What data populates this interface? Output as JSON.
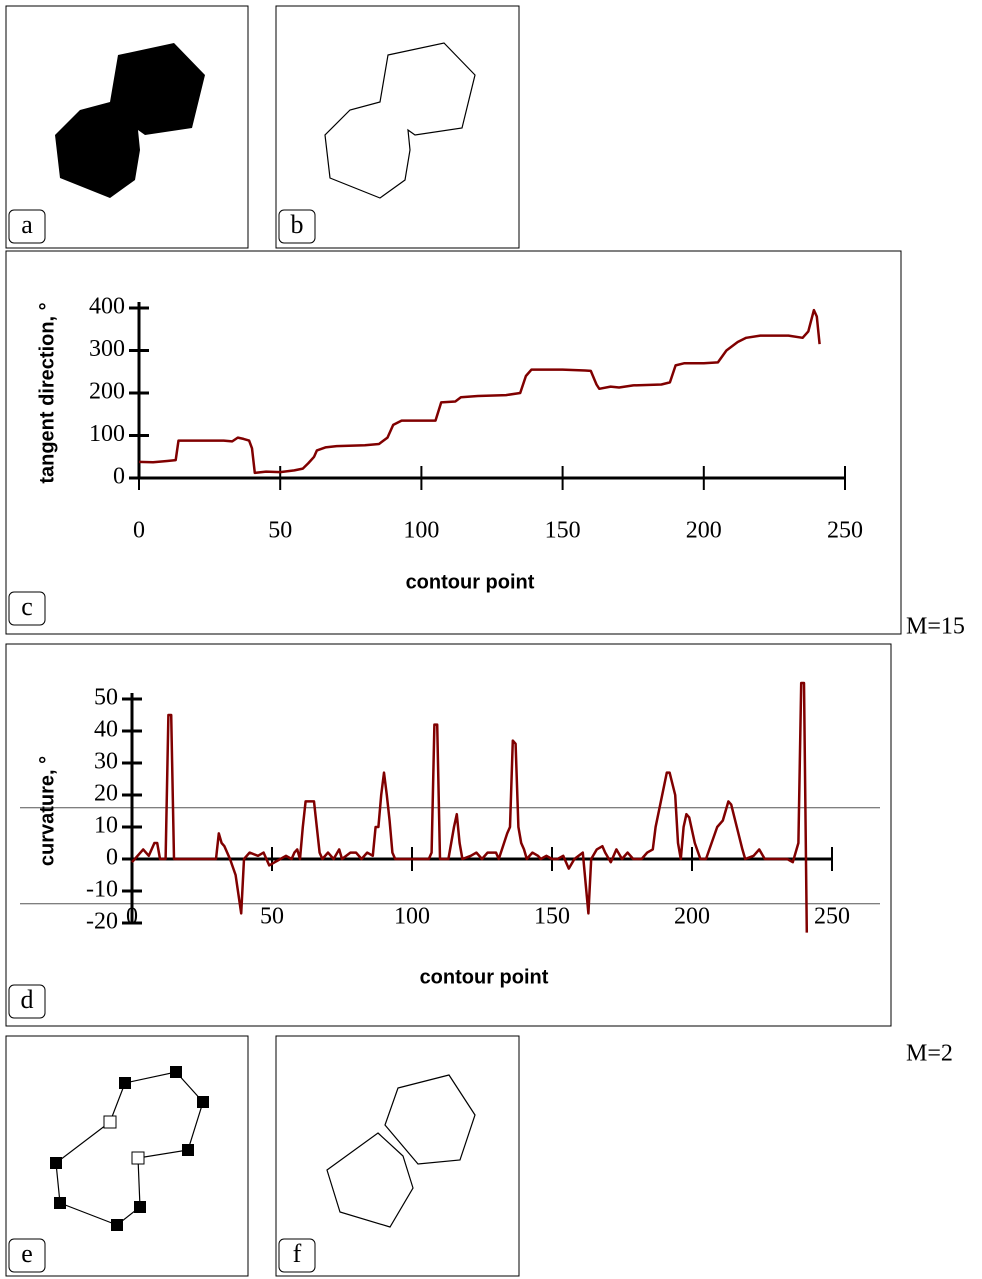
{
  "panel_labels": {
    "a": "a",
    "b": "b",
    "e": "e",
    "f": "f"
  },
  "chart_data": [
    {
      "type": "line",
      "panel_label": "c",
      "annotation": "M=15",
      "x_label": "contour point",
      "y_label": "tangent direction, °",
      "color": "#800000",
      "xlim": [
        0,
        250
      ],
      "xticks": [
        0,
        50,
        100,
        150,
        200,
        250
      ],
      "ylim": [
        0,
        400
      ],
      "yticks": [
        0,
        100,
        200,
        300,
        400
      ],
      "x": [
        0,
        5,
        10,
        13,
        14,
        20,
        30,
        33,
        35,
        37,
        39,
        40,
        41,
        45,
        50,
        55,
        58,
        60,
        62,
        63,
        66,
        70,
        80,
        85,
        88,
        90,
        93,
        105,
        107,
        112,
        114,
        120,
        130,
        135,
        137,
        139,
        150,
        158,
        160,
        162,
        163,
        167,
        170,
        175,
        185,
        188,
        190,
        193,
        200,
        205,
        208,
        212,
        215,
        220,
        230,
        235,
        237,
        239,
        240,
        241
      ],
      "values": [
        38,
        37,
        40,
        42,
        88,
        88,
        88,
        86,
        95,
        92,
        88,
        70,
        12,
        15,
        14,
        18,
        22,
        35,
        50,
        65,
        72,
        75,
        77,
        80,
        95,
        125,
        135,
        135,
        178,
        180,
        190,
        193,
        195,
        200,
        240,
        255,
        255,
        253,
        252,
        220,
        210,
        215,
        213,
        218,
        220,
        225,
        265,
        270,
        270,
        272,
        300,
        320,
        330,
        335,
        335,
        330,
        345,
        395,
        380,
        315
      ]
    },
    {
      "type": "line",
      "panel_label": "d",
      "annotation": "M=2",
      "x_label": "contour point",
      "y_label": "curvature, °",
      "color": "#800000",
      "xlim": [
        0,
        250
      ],
      "xticks": [
        0,
        50,
        100,
        150,
        200,
        250
      ],
      "ylim": [
        -20,
        50
      ],
      "yticks": [
        -20,
        -10,
        0,
        10,
        20,
        30,
        40,
        50
      ],
      "hlines": [
        16,
        -14
      ],
      "x": [
        0,
        2,
        4,
        6,
        8,
        9,
        10,
        12,
        13,
        14,
        15,
        30,
        31,
        32,
        33,
        35,
        37,
        39,
        40,
        42,
        45,
        47,
        49,
        51,
        53,
        55,
        57,
        58,
        59,
        60,
        61,
        62,
        65,
        66,
        67,
        68,
        70,
        72,
        74,
        75,
        78,
        80,
        82,
        84,
        86,
        87,
        88,
        89,
        90,
        91,
        92,
        93,
        94,
        106,
        107,
        108,
        109,
        110,
        113,
        115,
        116,
        117,
        118,
        121,
        123,
        125,
        127,
        130,
        131,
        134,
        135,
        136,
        137,
        138,
        139,
        140,
        141,
        143,
        145,
        146,
        148,
        150,
        152,
        154,
        156,
        158,
        161,
        163,
        164,
        166,
        168,
        169,
        171,
        173,
        175,
        177,
        179,
        182,
        184,
        186,
        187,
        191,
        192,
        194,
        195,
        196,
        197,
        198,
        199,
        201,
        203,
        205,
        207,
        209,
        211,
        213,
        214,
        216,
        218,
        219,
        222,
        224,
        226,
        230,
        234,
        236,
        238,
        239,
        240,
        241
      ],
      "values": [
        -1,
        1,
        3,
        1,
        5,
        5,
        0,
        0,
        45,
        45,
        0,
        0,
        8,
        5,
        4,
        0,
        -5,
        -17,
        0,
        2,
        1,
        2,
        -2,
        -1,
        0,
        1,
        0,
        2,
        3,
        0,
        10,
        18,
        18,
        10,
        2,
        0,
        2,
        0,
        3,
        0,
        2,
        2,
        0,
        2,
        1,
        10,
        10,
        20,
        27,
        20,
        12,
        2,
        0,
        0,
        2,
        42,
        42,
        0,
        0,
        10,
        14,
        5,
        0,
        1,
        2,
        0,
        2,
        2,
        0,
        8,
        10,
        37,
        36,
        10,
        5,
        3,
        0,
        2,
        1,
        0,
        1,
        0,
        0,
        1,
        -3,
        0,
        2,
        -17,
        0,
        3,
        4,
        2,
        -1,
        3,
        0,
        2,
        0,
        0,
        2,
        3,
        10,
        27,
        27,
        20,
        5,
        0,
        10,
        14,
        13,
        5,
        0,
        0,
        5,
        10,
        12,
        18,
        17,
        10,
        3,
        0,
        1,
        3,
        0,
        0,
        0,
        -1,
        5,
        55,
        55,
        -23
      ]
    }
  ]
}
